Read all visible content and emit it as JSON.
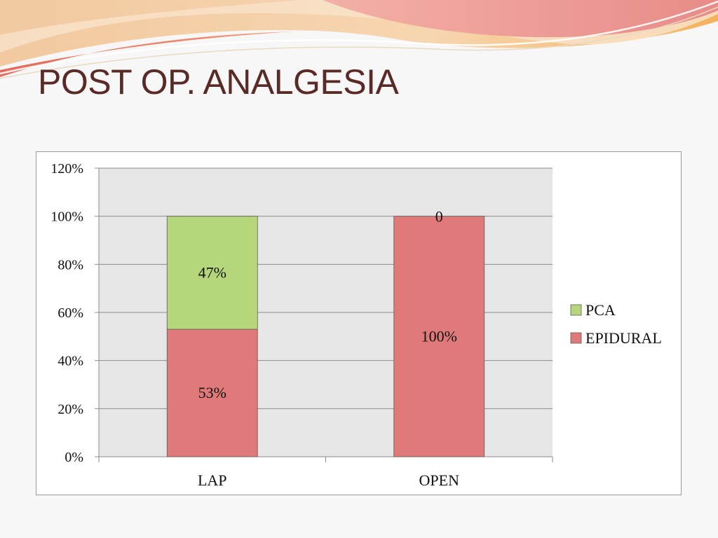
{
  "slide": {
    "title": "POST OP. ANALGESIA"
  },
  "chart_data": {
    "type": "bar",
    "stacked": true,
    "categories": [
      "LAP",
      "OPEN"
    ],
    "series": [
      {
        "name": "EPIDURAL",
        "values": [
          53,
          100
        ],
        "labels": [
          "53%",
          "100%"
        ],
        "color": "#e07a7a"
      },
      {
        "name": "PCA",
        "values": [
          47,
          0
        ],
        "labels": [
          "47%",
          "0"
        ],
        "color": "#b5d67a"
      }
    ],
    "yticks": [
      "0%",
      "20%",
      "40%",
      "60%",
      "80%",
      "100%",
      "120%"
    ],
    "ylim": [
      0,
      120
    ],
    "grid": true,
    "legend": "right",
    "plot_background": "#e6e6e6"
  }
}
